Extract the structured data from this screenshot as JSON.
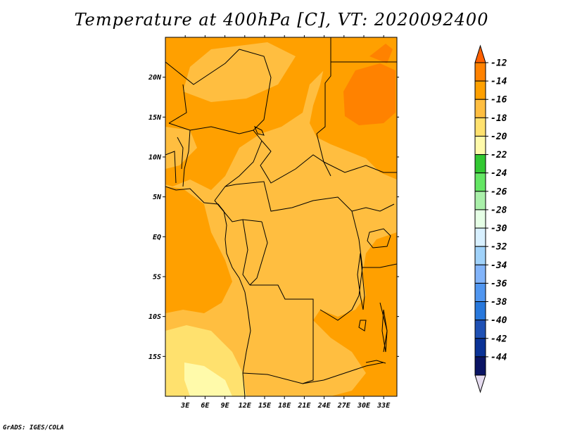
{
  "title": "Temperature at 400hPa [C], VT: 2020092400",
  "credit": "GrADS: IGES/COLA",
  "map": {
    "lon_range": [
      0,
      35
    ],
    "lat_range": [
      -20,
      25
    ],
    "lon_ticks": [
      "3E",
      "6E",
      "9E",
      "12E",
      "15E",
      "18E",
      "21E",
      "24E",
      "27E",
      "30E",
      "33E"
    ],
    "lat_ticks": [
      "20N",
      "15N",
      "10N",
      "5N",
      "EQ",
      "5S",
      "10S",
      "15S"
    ],
    "lon_tick_values": [
      3,
      6,
      9,
      12,
      15,
      18,
      21,
      24,
      27,
      30,
      33
    ],
    "lat_tick_values": [
      20,
      15,
      10,
      5,
      0,
      -5,
      -10,
      -15
    ],
    "base_color": "#ffbe40"
  },
  "colorbar": {
    "labels": [
      "-12",
      "-14",
      "-16",
      "-18",
      "-20",
      "-22",
      "-24",
      "-26",
      "-28",
      "-30",
      "-32",
      "-34",
      "-36",
      "-38",
      "-40",
      "-42",
      "-44"
    ],
    "colors": [
      "#ff6000",
      "#ff8200",
      "#ffa000",
      "#ffbe40",
      "#ffe16e",
      "#fffaaa",
      "#32c832",
      "#64e664",
      "#aaf0aa",
      "#e6ffe6",
      "#d8f0ff",
      "#a0d2fa",
      "#82b4fa",
      "#5096f0",
      "#2878dc",
      "#1e50b4",
      "#0a3296",
      "#0a1464",
      "#e6dcf0"
    ]
  }
}
